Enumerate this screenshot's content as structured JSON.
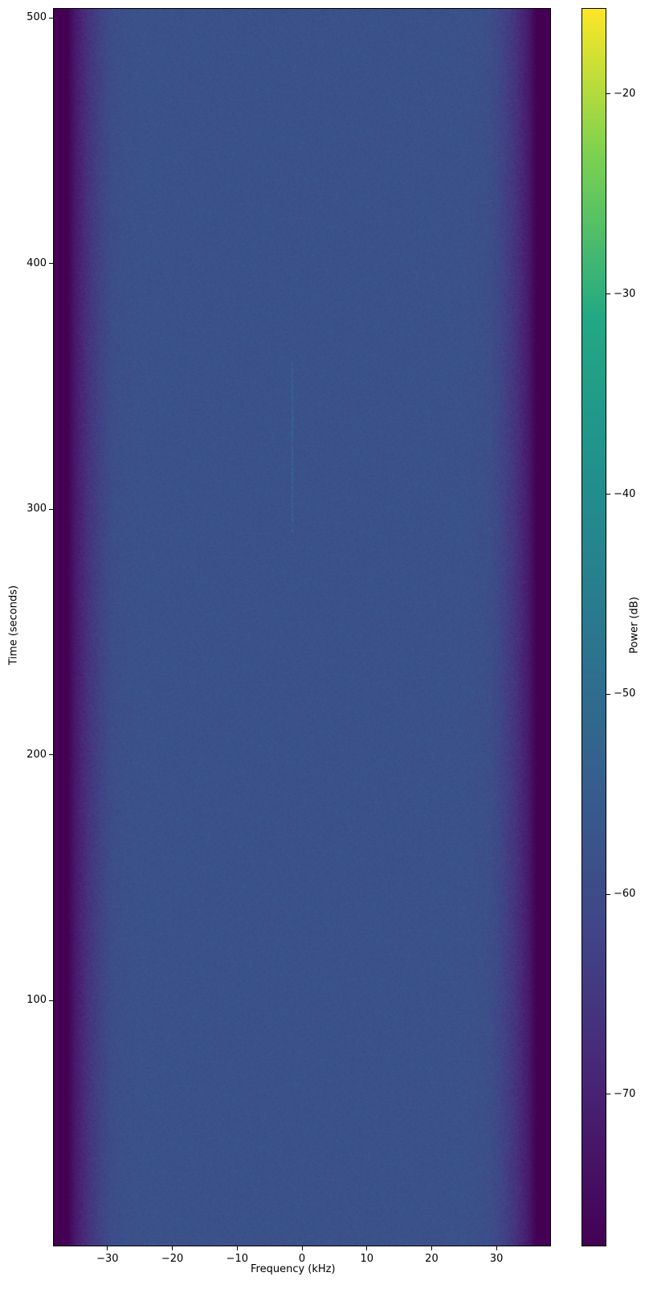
{
  "chart_data": {
    "type": "heatmap",
    "title": "",
    "xlabel": "Frequency (kHz)",
    "ylabel": "Time (seconds)",
    "xlim": [
      -38.4,
      38.4
    ],
    "ylim": [
      0,
      504
    ],
    "xticks": [
      -30,
      -20,
      -10,
      0,
      10,
      20,
      30
    ],
    "xtick_labels": [
      "−30",
      "−20",
      "−10",
      "0",
      "10",
      "20",
      "30"
    ],
    "yticks": [
      100,
      200,
      300,
      400,
      500
    ],
    "ytick_labels": [
      "100",
      "200",
      "300",
      "400",
      "500"
    ],
    "colormap": "viridis",
    "colorbar": {
      "label": "Power (dB)",
      "range": [
        -77.6,
        -15.7
      ],
      "ticks": [
        -70,
        -60,
        -50,
        -40,
        -30,
        -20
      ],
      "tick_labels": [
        "−70",
        "−60",
        "−50",
        "−40",
        "−30",
        "−20"
      ]
    },
    "grid": false,
    "mean_power_profile": {
      "frequency_khz": [
        -38.4,
        -36,
        -35,
        -33,
        -31,
        -29,
        -25,
        0,
        25,
        29,
        31,
        33,
        35,
        36,
        38.4
      ],
      "power_db": [
        -78,
        -77,
        -72,
        -66,
        -62,
        -59,
        -58,
        -58,
        -58,
        -59,
        -62,
        -66,
        -72,
        -77,
        -78
      ]
    },
    "faint_signal": {
      "frequency_khz": -1.5,
      "time_range_seconds": [
        290,
        360
      ],
      "power_db": -50
    }
  }
}
